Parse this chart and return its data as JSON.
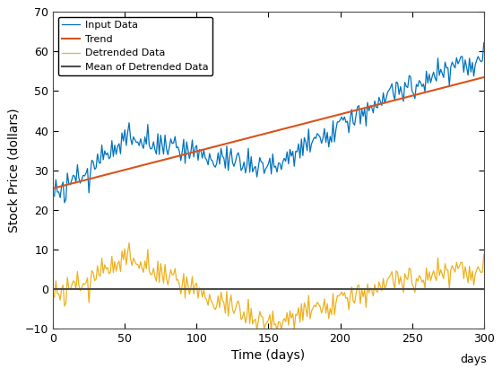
{
  "xlabel": "Time (days)",
  "ylabel": "Stock Price (dollars)",
  "xlim": [
    0,
    300
  ],
  "ylim": [
    -10,
    70
  ],
  "yticks": [
    -10,
    0,
    10,
    20,
    30,
    40,
    50,
    60,
    70
  ],
  "xticks": [
    0,
    50,
    100,
    150,
    200,
    250,
    300
  ],
  "trend_start": 25.5,
  "trend_end": 53.5,
  "mean_detrended": 0.0,
  "input_color": "#0072BD",
  "trend_color": "#D95319",
  "detrended_color": "#EDB120",
  "mean_color": "#4D4D4D",
  "legend_labels": [
    "Input Data",
    "Trend",
    "Detrended Data",
    "Mean of Detrended Data"
  ],
  "seed": 5,
  "n_points": 300,
  "line_width": 0.9,
  "trend_lw": 1.5,
  "mean_lw": 1.5,
  "xlabel_extra": "days",
  "figsize": [
    5.6,
    4.2
  ],
  "dpi": 100
}
